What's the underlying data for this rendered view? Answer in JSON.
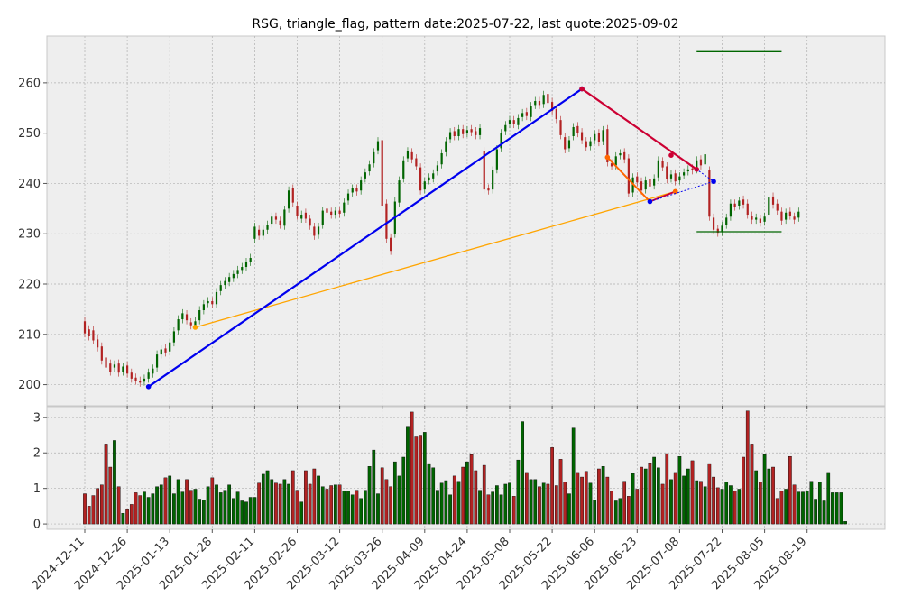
{
  "chart_data": {
    "type": "candlestick",
    "title": "RSG, triangle_flag, pattern date:2025-07-22, last quote:2025-09-02",
    "price_panel": {
      "ylim": [
        195.8,
        269.3
      ],
      "yticks": [
        200,
        210,
        220,
        230,
        240,
        250,
        260
      ],
      "grid": true,
      "candles": [
        {
          "o": 212.6,
          "c": 210.2
        },
        {
          "o": 211.0,
          "c": 209.6
        },
        {
          "o": 210.8,
          "c": 208.8
        },
        {
          "o": 209.0,
          "c": 207.4
        },
        {
          "o": 207.6,
          "c": 204.8
        },
        {
          "o": 205.4,
          "c": 203.4
        },
        {
          "o": 204.2,
          "c": 202.6
        },
        {
          "o": 203.4,
          "c": 204.0
        },
        {
          "o": 204.2,
          "c": 202.4
        },
        {
          "o": 202.6,
          "c": 203.6
        },
        {
          "o": 203.8,
          "c": 202.2
        },
        {
          "o": 202.4,
          "c": 201.2
        },
        {
          "o": 201.4,
          "c": 200.8
        },
        {
          "o": 200.8,
          "c": 200.4
        },
        {
          "o": 200.6,
          "c": 201.2
        },
        {
          "o": 201.2,
          "c": 202.4
        },
        {
          "o": 202.2,
          "c": 203.2
        },
        {
          "o": 203.4,
          "c": 206.0
        },
        {
          "o": 206.0,
          "c": 207.0
        },
        {
          "o": 207.2,
          "c": 206.4
        },
        {
          "o": 206.6,
          "c": 208.4
        },
        {
          "o": 208.4,
          "c": 210.6
        },
        {
          "o": 210.8,
          "c": 213.0
        },
        {
          "o": 213.0,
          "c": 214.2
        },
        {
          "o": 214.0,
          "c": 212.8
        },
        {
          "o": 212.4,
          "c": 211.8
        },
        {
          "o": 211.8,
          "c": 212.6
        },
        {
          "o": 212.8,
          "c": 214.8
        },
        {
          "o": 214.8,
          "c": 216.0
        },
        {
          "o": 216.2,
          "c": 216.6
        },
        {
          "o": 216.6,
          "c": 216.0
        },
        {
          "o": 216.0,
          "c": 218.4
        },
        {
          "o": 218.6,
          "c": 219.8
        },
        {
          "o": 219.8,
          "c": 220.6
        },
        {
          "o": 220.4,
          "c": 221.4
        },
        {
          "o": 221.2,
          "c": 222.0
        },
        {
          "o": 222.0,
          "c": 222.8
        },
        {
          "o": 222.8,
          "c": 223.4
        },
        {
          "o": 223.4,
          "c": 224.4
        },
        {
          "o": 224.4,
          "c": 225.2
        },
        {
          "o": 229.0,
          "c": 231.4
        },
        {
          "o": 230.8,
          "c": 229.6
        },
        {
          "o": 229.6,
          "c": 230.8
        },
        {
          "o": 230.8,
          "c": 231.8
        },
        {
          "o": 232.0,
          "c": 233.4
        },
        {
          "o": 233.4,
          "c": 232.8
        },
        {
          "o": 232.6,
          "c": 231.8
        },
        {
          "o": 231.6,
          "c": 234.8
        },
        {
          "o": 235.0,
          "c": 238.6
        },
        {
          "o": 239.0,
          "c": 236.2
        },
        {
          "o": 235.6,
          "c": 233.6
        },
        {
          "o": 233.0,
          "c": 233.8
        },
        {
          "o": 234.2,
          "c": 233.0
        },
        {
          "o": 233.0,
          "c": 231.6
        },
        {
          "o": 231.4,
          "c": 229.6
        },
        {
          "o": 229.8,
          "c": 231.4
        },
        {
          "o": 231.8,
          "c": 234.6
        },
        {
          "o": 235.0,
          "c": 234.2
        },
        {
          "o": 234.4,
          "c": 233.8
        },
        {
          "o": 233.8,
          "c": 234.6
        },
        {
          "o": 234.6,
          "c": 234.0
        },
        {
          "o": 234.2,
          "c": 236.2
        },
        {
          "o": 236.6,
          "c": 238.0
        },
        {
          "o": 238.2,
          "c": 239.0
        },
        {
          "o": 239.0,
          "c": 238.4
        },
        {
          "o": 238.6,
          "c": 240.6
        },
        {
          "o": 241.0,
          "c": 242.2
        },
        {
          "o": 242.4,
          "c": 243.8
        },
        {
          "o": 244.0,
          "c": 246.2
        },
        {
          "o": 246.6,
          "c": 248.4
        },
        {
          "o": 248.6,
          "c": 235.6
        },
        {
          "o": 236.0,
          "c": 229.0
        },
        {
          "o": 229.2,
          "c": 226.6
        },
        {
          "o": 230.0,
          "c": 236.4
        },
        {
          "o": 236.2,
          "c": 240.6
        },
        {
          "o": 241.0,
          "c": 244.6
        },
        {
          "o": 245.0,
          "c": 246.4
        },
        {
          "o": 246.2,
          "c": 244.8
        },
        {
          "o": 245.0,
          "c": 243.4
        },
        {
          "o": 243.2,
          "c": 238.6
        },
        {
          "o": 238.8,
          "c": 240.4
        },
        {
          "o": 240.6,
          "c": 241.2
        },
        {
          "o": 241.0,
          "c": 242.0
        },
        {
          "o": 242.4,
          "c": 243.6
        },
        {
          "o": 243.8,
          "c": 246.0
        },
        {
          "o": 246.2,
          "c": 248.4
        },
        {
          "o": 248.8,
          "c": 250.2
        },
        {
          "o": 250.4,
          "c": 249.4
        },
        {
          "o": 249.4,
          "c": 250.8
        },
        {
          "o": 250.8,
          "c": 249.8
        },
        {
          "o": 250.0,
          "c": 250.6
        },
        {
          "o": 250.8,
          "c": 250.2
        },
        {
          "o": 250.4,
          "c": 249.6
        },
        {
          "o": 249.6,
          "c": 251.0
        },
        {
          "o": 246.4,
          "c": 238.8
        },
        {
          "o": 239.0,
          "c": 238.6
        },
        {
          "o": 238.8,
          "c": 242.6
        },
        {
          "o": 242.8,
          "c": 246.8
        },
        {
          "o": 247.0,
          "c": 250.0
        },
        {
          "o": 250.4,
          "c": 251.6
        },
        {
          "o": 251.8,
          "c": 252.6
        },
        {
          "o": 252.6,
          "c": 251.8
        },
        {
          "o": 251.6,
          "c": 253.0
        },
        {
          "o": 253.2,
          "c": 254.0
        },
        {
          "o": 254.2,
          "c": 253.4
        },
        {
          "o": 253.2,
          "c": 255.4
        },
        {
          "o": 255.6,
          "c": 256.4
        },
        {
          "o": 256.4,
          "c": 255.6
        },
        {
          "o": 255.8,
          "c": 257.6
        },
        {
          "o": 257.8,
          "c": 256.0
        },
        {
          "o": 256.2,
          "c": 254.4
        },
        {
          "o": 254.8,
          "c": 252.8
        },
        {
          "o": 252.6,
          "c": 249.6
        },
        {
          "o": 249.2,
          "c": 246.8
        },
        {
          "o": 247.0,
          "c": 248.6
        },
        {
          "o": 249.4,
          "c": 251.2
        },
        {
          "o": 251.4,
          "c": 250.0
        },
        {
          "o": 250.2,
          "c": 248.6
        },
        {
          "o": 248.4,
          "c": 247.2
        },
        {
          "o": 247.4,
          "c": 248.4
        },
        {
          "o": 248.6,
          "c": 249.8
        },
        {
          "o": 250.0,
          "c": 248.2
        },
        {
          "o": 248.4,
          "c": 250.6
        },
        {
          "o": 250.8,
          "c": 244.2
        },
        {
          "o": 244.0,
          "c": 243.4
        },
        {
          "o": 243.6,
          "c": 245.4
        },
        {
          "o": 245.6,
          "c": 246.0
        },
        {
          "o": 246.2,
          "c": 244.8
        },
        {
          "o": 245.0,
          "c": 238.0
        },
        {
          "o": 238.2,
          "c": 241.2
        },
        {
          "o": 241.4,
          "c": 240.2
        },
        {
          "o": 240.4,
          "c": 238.6
        },
        {
          "o": 238.8,
          "c": 240.6
        },
        {
          "o": 240.8,
          "c": 239.4
        },
        {
          "o": 239.6,
          "c": 241.0
        },
        {
          "o": 241.2,
          "c": 244.6
        },
        {
          "o": 244.4,
          "c": 243.2
        },
        {
          "o": 243.4,
          "c": 240.8
        },
        {
          "o": 241.0,
          "c": 241.8
        },
        {
          "o": 242.0,
          "c": 240.4
        },
        {
          "o": 240.6,
          "c": 241.4
        },
        {
          "o": 241.6,
          "c": 242.2
        },
        {
          "o": 242.4,
          "c": 242.8
        },
        {
          "o": 243.0,
          "c": 242.6
        },
        {
          "o": 242.8,
          "c": 244.6
        },
        {
          "o": 244.8,
          "c": 243.6
        },
        {
          "o": 243.8,
          "c": 245.8
        },
        {
          "o": 242.6,
          "c": 233.4
        },
        {
          "o": 233.2,
          "c": 230.8
        },
        {
          "o": 231.0,
          "c": 230.2
        },
        {
          "o": 230.4,
          "c": 231.6
        },
        {
          "o": 231.8,
          "c": 233.2
        },
        {
          "o": 233.4,
          "c": 236.0
        },
        {
          "o": 236.0,
          "c": 235.4
        },
        {
          "o": 235.6,
          "c": 236.6
        },
        {
          "o": 236.8,
          "c": 235.8
        },
        {
          "o": 236.0,
          "c": 233.8
        },
        {
          "o": 233.6,
          "c": 232.8
        },
        {
          "o": 232.8,
          "c": 233.2
        },
        {
          "o": 233.0,
          "c": 232.2
        },
        {
          "o": 232.4,
          "c": 233.4
        },
        {
          "o": 233.8,
          "c": 237.2
        },
        {
          "o": 237.4,
          "c": 235.8
        },
        {
          "o": 236.0,
          "c": 234.6
        },
        {
          "o": 234.4,
          "c": 232.6
        },
        {
          "o": 232.8,
          "c": 234.2
        },
        {
          "o": 234.4,
          "c": 233.6
        },
        {
          "o": 233.4,
          "c": 232.8
        },
        {
          "o": 233.2,
          "c": 234.4
        }
      ],
      "overlays": {
        "blue_line": {
          "points": [
            [
              15,
              199.6
            ],
            [
              117,
              258.8
            ]
          ],
          "color": "#0000ee"
        },
        "orange_line": {
          "points": [
            [
              26,
              211.4
            ],
            [
              139,
              238.4
            ]
          ],
          "color": "#ffa500"
        },
        "red_line": {
          "points": [
            [
              117,
              258.8
            ],
            [
              144,
              242.8
            ]
          ],
          "color": "#cc0033"
        },
        "red_marker": {
          "point": [
            138,
            245.6
          ],
          "color": "#cc0033"
        },
        "orange_red_line": {
          "points": [
            [
              123,
              245.2
            ],
            [
              133,
              236.4
            ],
            [
              139,
              238.4
            ]
          ],
          "colors": [
            "#ff6600",
            "#cc0033"
          ]
        },
        "blue_dotted": {
          "points": [
            [
              133,
              236.4
            ],
            [
              148,
              240.4
            ],
            [
              144,
              242.8
            ]
          ],
          "color": "#0000ee"
        },
        "green_upper": {
          "x": [
            144,
            164
          ],
          "y": 266.2,
          "color": "#006600"
        },
        "green_lower": {
          "x": [
            144,
            164
          ],
          "y": 230.4,
          "color": "#006600"
        }
      }
    },
    "volume_panel": {
      "ylim": [
        -0.15,
        3.3
      ],
      "yticks": [
        0,
        1,
        2,
        3
      ],
      "values": [
        0.85,
        0.5,
        0.8,
        1.0,
        1.1,
        2.25,
        1.6,
        2.35,
        1.05,
        0.3,
        0.4,
        0.55,
        0.88,
        0.8,
        0.9,
        0.75,
        0.85,
        1.05,
        1.1,
        1.3,
        1.35,
        0.85,
        1.25,
        0.9,
        1.25,
        0.95,
        0.98,
        0.7,
        0.68,
        1.05,
        1.3,
        1.1,
        0.88,
        0.95,
        1.1,
        0.72,
        0.9,
        0.65,
        0.62,
        0.75,
        0.75,
        1.15,
        1.4,
        1.5,
        1.25,
        1.15,
        1.12,
        1.25,
        1.12,
        1.5,
        0.95,
        0.62,
        1.5,
        1.12,
        1.55,
        1.35,
        1.05,
        0.98,
        1.08,
        1.1,
        1.1,
        0.92,
        0.92,
        0.82,
        0.95,
        0.72,
        0.95,
        1.62,
        2.08,
        0.85,
        1.58,
        1.25,
        1.05,
        1.75,
        1.35,
        1.88,
        2.75,
        3.15,
        2.45,
        2.5,
        2.58,
        1.7,
        1.58,
        0.95,
        1.15,
        1.22,
        0.82,
        1.35,
        1.2,
        1.6,
        1.75,
        1.95,
        1.5,
        0.95,
        1.65,
        0.82,
        0.9,
        1.08,
        0.82,
        1.12,
        1.15,
        0.78,
        1.8,
        2.88,
        1.45,
        1.25,
        1.25,
        1.05,
        1.15,
        1.12,
        2.15,
        1.08,
        1.82,
        1.18,
        0.85,
        2.7,
        1.45,
        1.32,
        1.48,
        1.15,
        0.68,
        1.55,
        1.62,
        1.32,
        0.92,
        0.65,
        0.72,
        1.2,
        0.78,
        1.42,
        0.98,
        1.6,
        1.55,
        1.72,
        1.88,
        1.58,
        1.12,
        1.98,
        1.25,
        1.45,
        1.9,
        1.35,
        1.55,
        1.78,
        1.22,
        1.2,
        1.05,
        1.7,
        1.32,
        1.02,
        0.98,
        1.18,
        1.08,
        0.92,
        0.98,
        1.88,
        3.18,
        2.25,
        1.5,
        1.18,
        1.95,
        1.55,
        1.6,
        0.72,
        0.92,
        0.98,
        1.9,
        1.1,
        0.9,
        0.9,
        0.92,
        1.2,
        0.7,
        1.18,
        0.65,
        1.45,
        0.88,
        0.88,
        0.88,
        0.07
      ]
    },
    "x_ticks": [
      {
        "index": 0,
        "label": "2024-12-11"
      },
      {
        "index": 10,
        "label": "2024-12-26"
      },
      {
        "index": 20,
        "label": "2025-01-13"
      },
      {
        "index": 30,
        "label": "2025-01-28"
      },
      {
        "index": 40,
        "label": "2025-02-11"
      },
      {
        "index": 50,
        "label": "2025-02-26"
      },
      {
        "index": 60,
        "label": "2025-03-12"
      },
      {
        "index": 70,
        "label": "2025-03-26"
      },
      {
        "index": 80,
        "label": "2025-04-09"
      },
      {
        "index": 90,
        "label": "2025-04-24"
      },
      {
        "index": 100,
        "label": "2025-05-08"
      },
      {
        "index": 110,
        "label": "2025-05-22"
      },
      {
        "index": 120,
        "label": "2025-06-06"
      },
      {
        "index": 130,
        "label": "2025-06-23"
      },
      {
        "index": 140,
        "label": "2025-07-08"
      },
      {
        "index": 150,
        "label": "2025-07-22"
      },
      {
        "index": 160,
        "label": "2025-08-05"
      },
      {
        "index": 170,
        "label": "2025-08-19"
      }
    ],
    "colors": {
      "up": "#006400",
      "down": "#b22222",
      "panel_bg": "#eeeeee",
      "grid": "#b0b0b0"
    }
  }
}
